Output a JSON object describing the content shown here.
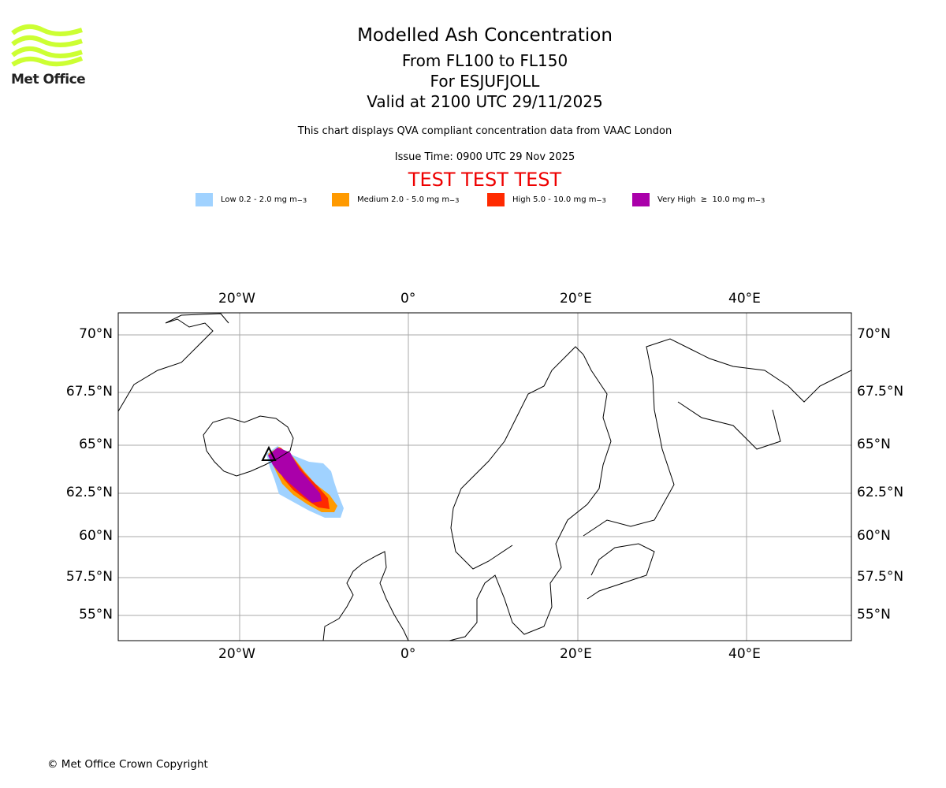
{
  "logo": {
    "text": "Met Office",
    "color": "#ccff33"
  },
  "title": {
    "main": "Modelled Ash Concentration",
    "levels": "From FL100 to FL150",
    "volcano": "For ESJUFJOLL",
    "valid": "Valid at 2100 UTC 29/11/2025",
    "description": "This chart displays QVA compliant concentration data from VAAC London",
    "issue": "Issue Time: 0900 UTC 29 Nov 2025",
    "test_banner": "TEST TEST TEST"
  },
  "legend": [
    {
      "label": "Low 0.2 - 2.0 mg m",
      "unit_exp": "−3",
      "color": "#a0d2ff"
    },
    {
      "label": "Medium 2.0 - 5.0 mg m",
      "unit_exp": "−3",
      "color": "#ff9a00"
    },
    {
      "label": "High 5.0 - 10.0 mg m",
      "unit_exp": "−3",
      "color": "#ff2a00"
    },
    {
      "label": "Very High  ≥  10.0 mg m",
      "unit_exp": "−3",
      "color": "#aa00aa"
    }
  ],
  "map": {
    "lon_ticks": [
      "20°W",
      "0°",
      "20°E",
      "40°E"
    ],
    "lat_ticks": [
      "70°N",
      "67.5°N",
      "65°N",
      "62.5°N",
      "60°N",
      "57.5°N",
      "55°N"
    ],
    "volcano_marker": "triangle"
  },
  "footer": {
    "copyright": "© Met Office Crown Copyright"
  }
}
